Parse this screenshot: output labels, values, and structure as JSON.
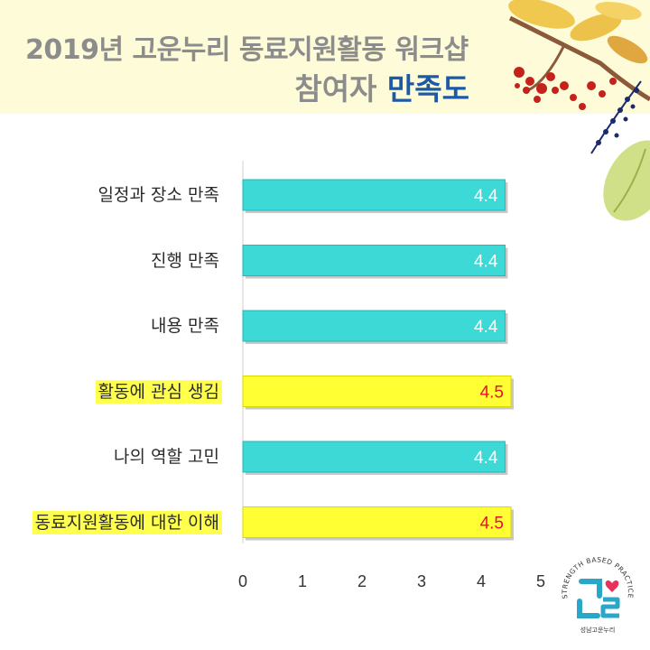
{
  "header": {
    "line1": "2019년 고운누리 동료지원활동 워크샵",
    "line2_plain": "참여자 ",
    "line2_accent": "만족도"
  },
  "colors": {
    "bar_default": "#3dd9d6",
    "bar_highlight": "#ffff33",
    "label_highlight_bg": "#ffff4d",
    "value_default": "#ffffff",
    "value_highlight": "#e8102a",
    "title_gray": "#8c8c8c",
    "title_accent": "#1a5aa8"
  },
  "chart_data": {
    "type": "bar",
    "orientation": "horizontal",
    "categories": [
      "일정과 장소 만족",
      "진행 만족",
      "내용 만족",
      "활동에 관심 생김",
      "나의 역할 고민",
      "동료지원활동에 대한 이해"
    ],
    "values": [
      4.4,
      4.4,
      4.4,
      4.5,
      4.4,
      4.5
    ],
    "value_labels": [
      "4.4",
      "4.4",
      "4.4",
      "4.5",
      "4.4",
      "4.5"
    ],
    "highlighted": [
      false,
      false,
      false,
      true,
      false,
      true
    ],
    "xlim": [
      0,
      5
    ],
    "x_ticks": [
      "0",
      "1",
      "2",
      "3",
      "4",
      "5"
    ],
    "grid": false
  },
  "logo": {
    "ring_text": "STRENGTH BASED PRACTICE",
    "bottom_text": "성남고운누리"
  }
}
